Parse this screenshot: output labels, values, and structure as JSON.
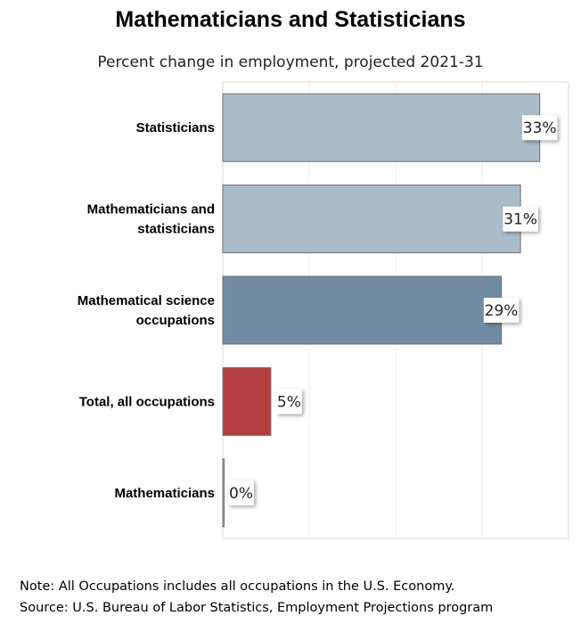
{
  "chart_data": {
    "type": "bar",
    "orientation": "horizontal",
    "title": "Mathematicians and Statisticians",
    "subtitle": "Percent change in employment, projected 2021-31",
    "categories": [
      [
        "Statisticians"
      ],
      [
        "Mathematicians and",
        "statisticians"
      ],
      [
        "Mathematical science",
        "occupations"
      ],
      [
        "Total, all occupations"
      ],
      [
        "Mathematicians"
      ]
    ],
    "values": [
      33,
      31,
      29,
      5,
      0
    ],
    "value_labels": [
      "33%",
      "31%",
      "29%",
      "5%",
      "0%"
    ],
    "bar_colors": [
      "#abbcc9",
      "#abbcc9",
      "#718ca2",
      "#b53f40",
      "#abbcc9"
    ],
    "xlim": [
      0,
      36
    ],
    "grid": true,
    "legend": "none"
  },
  "notes": {
    "note": "Note: All Occupations includes all occupations in the U.S. Economy.",
    "source": "Source: U.S. Bureau of Labor Statistics, Employment Projections program"
  }
}
